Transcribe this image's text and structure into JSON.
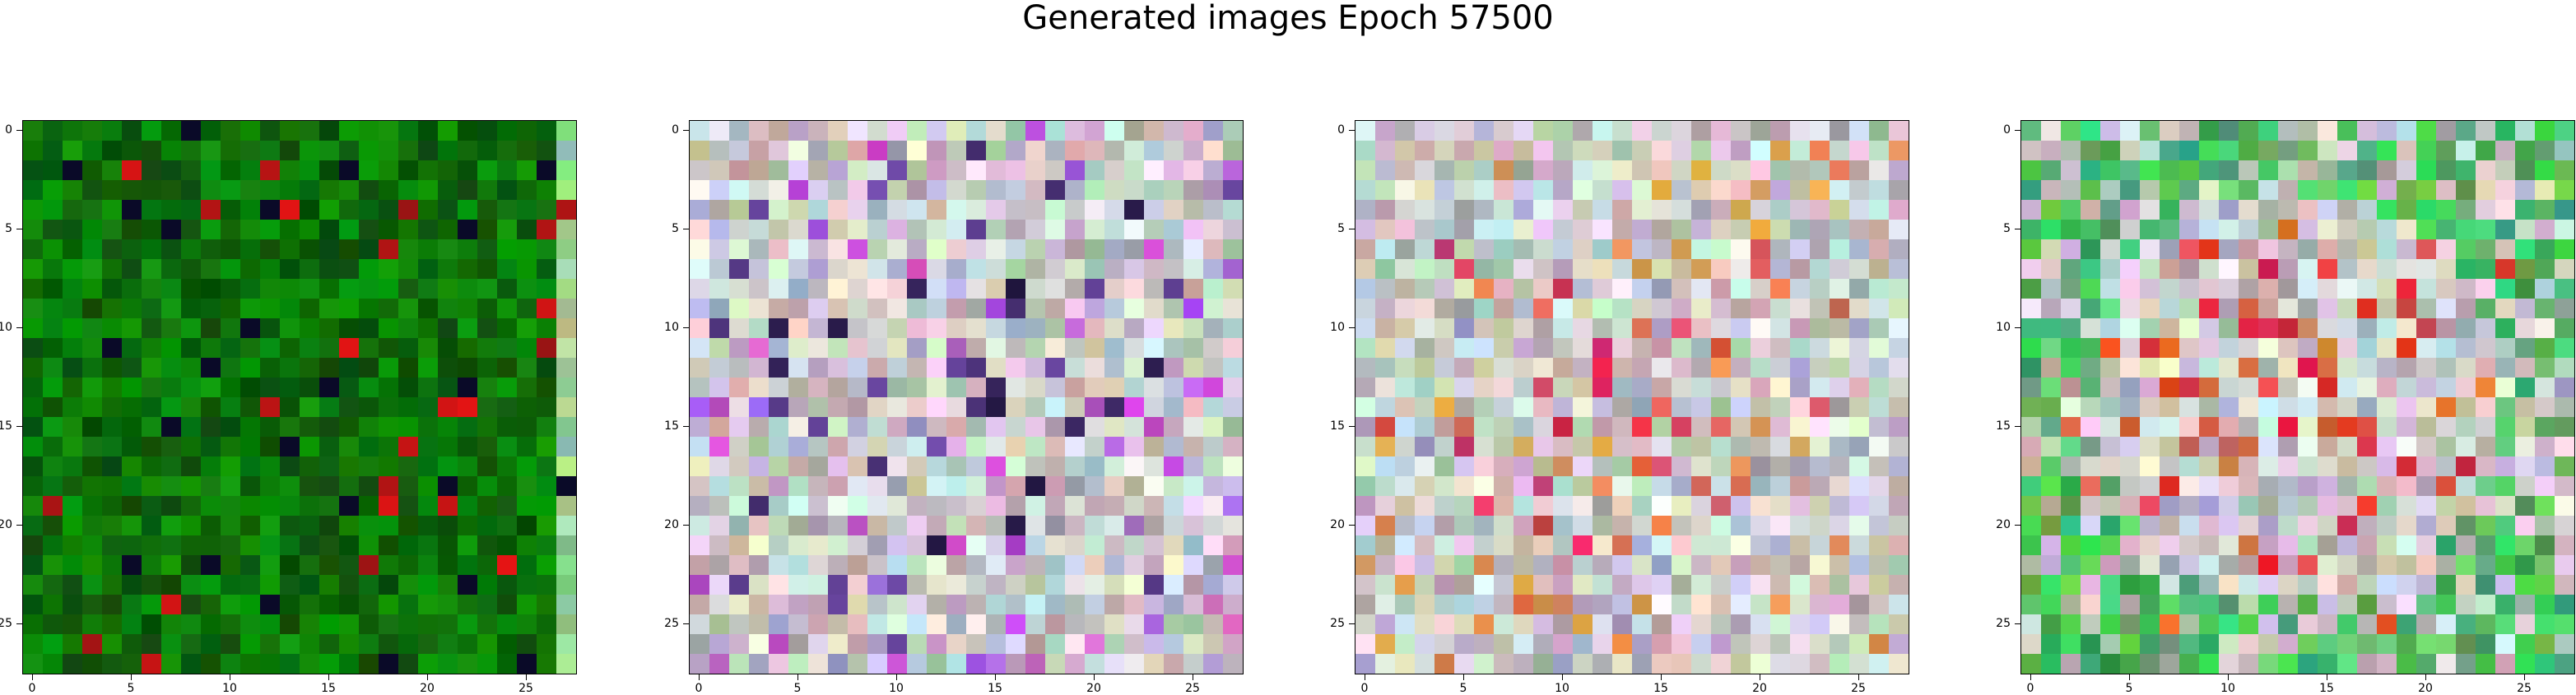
{
  "title": "Generated images Epoch 57500",
  "axis": {
    "xticks": [
      "0",
      "5",
      "10",
      "15",
      "20",
      "25"
    ],
    "yticks": [
      "0",
      "5",
      "10",
      "15",
      "20",
      "25"
    ],
    "grid_size": 28
  },
  "images": [
    {
      "name": "generated-image-1",
      "palette": "green"
    },
    {
      "name": "generated-image-2",
      "palette": "pastel"
    },
    {
      "name": "generated-image-3",
      "palette": "pastel-warm"
    },
    {
      "name": "generated-image-4",
      "palette": "mixed"
    }
  ],
  "colors": {
    "green_base": "#0e7a0e",
    "green_dark": "#044d04",
    "pastel_base": "#c9bcc8",
    "warm_accent": "#d23a5a",
    "teal_accent": "#3a9a7a"
  }
}
